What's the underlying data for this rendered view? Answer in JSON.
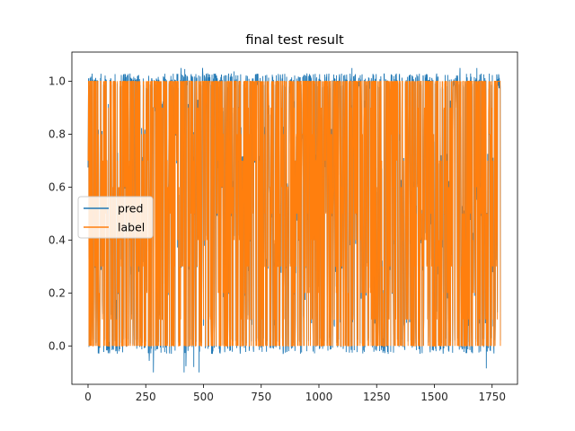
{
  "chart_data": {
    "type": "line",
    "title": "final test result",
    "xlabel": "",
    "ylabel": "",
    "xlim": [
      -70,
      1860
    ],
    "ylim": [
      -0.145,
      1.11
    ],
    "x_ticks": [
      0,
      250,
      500,
      750,
      1000,
      1250,
      1500,
      1750
    ],
    "y_ticks": [
      0.0,
      0.2,
      0.4,
      0.6,
      0.8,
      1.0
    ],
    "grid": false,
    "legend_position": "center-left",
    "x_range": [
      0,
      1786
    ],
    "series": [
      {
        "name": "pred",
        "color": "#1f77b4",
        "description": "model predictions oscillating between about -0.1 and 1.05 over all samples",
        "min": -0.1,
        "max": 1.05
      },
      {
        "name": "label",
        "color": "#ff7f0e",
        "description": "ground-truth labels alternating between values in 0.0 to 1.0 over all samples",
        "min": 0.0,
        "max": 1.0
      }
    ]
  }
}
